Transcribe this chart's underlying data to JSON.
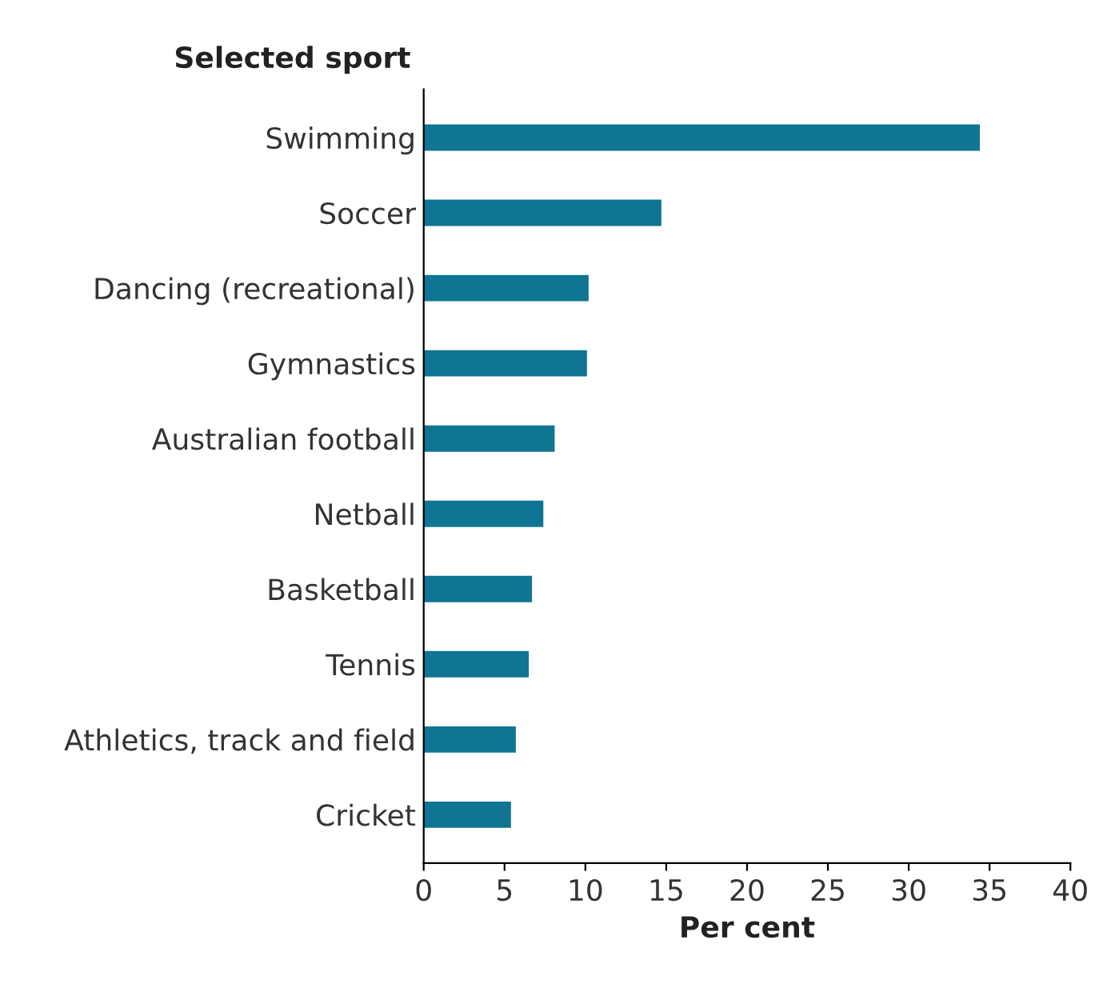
{
  "chart_data": {
    "type": "bar",
    "orientation": "horizontal",
    "categories": [
      "Swimming",
      "Soccer",
      "Dancing (recreational)",
      "Gymnastics",
      "Australian football",
      "Netball",
      "Basketball",
      "Tennis",
      "Athletics, track and field",
      "Cricket"
    ],
    "values": [
      34.4,
      14.7,
      10.2,
      10.1,
      8.1,
      7.4,
      6.7,
      6.5,
      5.7,
      5.4
    ],
    "color": "#0f7592",
    "ylabel": "Selected sport",
    "xlabel": "Per cent",
    "xlim": [
      0,
      40
    ],
    "xticks": [
      0,
      5,
      10,
      15,
      20,
      25,
      30,
      35,
      40
    ],
    "grid": false,
    "legend": false
  }
}
